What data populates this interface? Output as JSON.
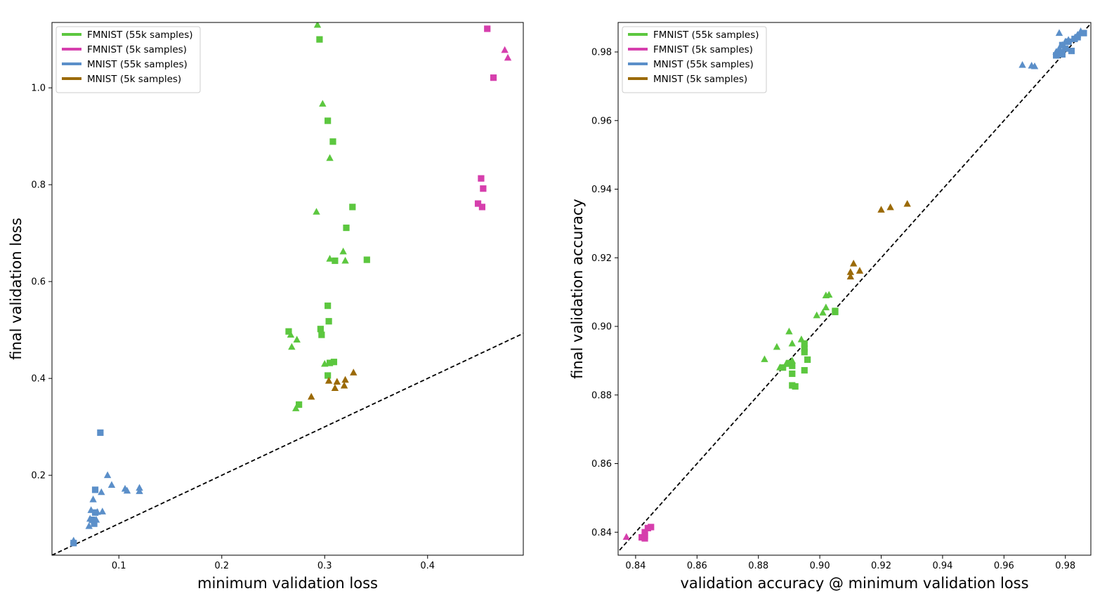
{
  "chart_data": [
    {
      "type": "scatter",
      "xlabel": "minimum validation loss",
      "ylabel": "final validation loss",
      "xlim": [
        0.035,
        0.493
      ],
      "ylim": [
        0.035,
        1.135
      ],
      "xticks": [
        0.1,
        0.2,
        0.3,
        0.4
      ],
      "yticks": [
        0.2,
        0.4,
        0.6,
        0.8,
        1.0
      ],
      "xtick_labels": [
        "0.1",
        "0.2",
        "0.3",
        "0.4"
      ],
      "ytick_labels": [
        "0.2",
        "0.4",
        "0.6",
        "0.8",
        "1.0"
      ],
      "reference_line": "y = x",
      "legend_position": "upper-left",
      "series": [
        {
          "name": "FMNIST (55k samples)",
          "color": "#5cc73f",
          "triangles": [
            [
              0.293,
              1.13
            ],
            [
              0.298,
              0.967
            ],
            [
              0.305,
              0.855
            ],
            [
              0.292,
              0.744
            ],
            [
              0.318,
              0.662
            ],
            [
              0.32,
              0.643
            ],
            [
              0.305,
              0.647
            ],
            [
              0.267,
              0.49
            ],
            [
              0.273,
              0.48
            ],
            [
              0.268,
              0.465
            ],
            [
              0.3,
              0.43
            ],
            [
              0.272,
              0.338
            ],
            [
              0.274,
              0.345
            ]
          ],
          "squares": [
            [
              0.295,
              1.1
            ],
            [
              0.303,
              0.932
            ],
            [
              0.308,
              0.889
            ],
            [
              0.327,
              0.754
            ],
            [
              0.321,
              0.711
            ],
            [
              0.31,
              0.643
            ],
            [
              0.341,
              0.645
            ],
            [
              0.303,
              0.55
            ],
            [
              0.304,
              0.518
            ],
            [
              0.265,
              0.497
            ],
            [
              0.296,
              0.502
            ],
            [
              0.297,
              0.49
            ],
            [
              0.309,
              0.434
            ],
            [
              0.305,
              0.432
            ],
            [
              0.303,
              0.406
            ],
            [
              0.275,
              0.346
            ]
          ]
        },
        {
          "name": "FMNIST (5k samples)",
          "color": "#d63fad",
          "triangles": [
            [
              0.475,
              1.078
            ],
            [
              0.478,
              1.062
            ]
          ],
          "squares": [
            [
              0.458,
              1.122
            ],
            [
              0.464,
              1.021
            ],
            [
              0.452,
              0.813
            ],
            [
              0.454,
              0.792
            ],
            [
              0.449,
              0.761
            ],
            [
              0.453,
              0.754
            ]
          ]
        },
        {
          "name": "MNIST (55k samples)",
          "color": "#5b8fc9",
          "triangles": [
            [
              0.089,
              0.2
            ],
            [
              0.093,
              0.18
            ],
            [
              0.106,
              0.172
            ],
            [
              0.108,
              0.168
            ],
            [
              0.12,
              0.174
            ],
            [
              0.12,
              0.167
            ],
            [
              0.075,
              0.15
            ],
            [
              0.083,
              0.165
            ],
            [
              0.073,
              0.128
            ],
            [
              0.079,
              0.124
            ],
            [
              0.084,
              0.125
            ],
            [
              0.072,
              0.11
            ],
            [
              0.078,
              0.108
            ],
            [
              0.071,
              0.095
            ],
            [
              0.056,
              0.065
            ]
          ],
          "squares": [
            [
              0.082,
              0.288
            ],
            [
              0.077,
              0.17
            ],
            [
              0.077,
              0.123
            ],
            [
              0.074,
              0.108
            ],
            [
              0.076,
              0.1
            ],
            [
              0.056,
              0.06
            ]
          ]
        },
        {
          "name": "MNIST (5k samples)",
          "color": "#9b6a06",
          "triangles": [
            [
              0.328,
              0.412
            ],
            [
              0.32,
              0.397
            ],
            [
              0.304,
              0.395
            ],
            [
              0.312,
              0.393
            ],
            [
              0.319,
              0.385
            ],
            [
              0.31,
              0.38
            ],
            [
              0.287,
              0.362
            ]
          ],
          "squares": []
        }
      ]
    },
    {
      "type": "scatter",
      "xlabel": "validation accuracy @ minimum validation loss",
      "ylabel": "final validation accuracy",
      "xlim": [
        0.8343,
        0.9883
      ],
      "ylim": [
        0.8333,
        0.9886
      ],
      "xticks": [
        0.84,
        0.86,
        0.88,
        0.9,
        0.92,
        0.94,
        0.96,
        0.98
      ],
      "yticks": [
        0.84,
        0.86,
        0.88,
        0.9,
        0.92,
        0.94,
        0.96,
        0.98
      ],
      "xtick_labels": [
        "0.84",
        "0.86",
        "0.88",
        "0.90",
        "0.92",
        "0.94",
        "0.96",
        "0.98"
      ],
      "ytick_labels": [
        "0.84",
        "0.86",
        "0.88",
        "0.90",
        "0.92",
        "0.94",
        "0.96",
        "0.98"
      ],
      "reference_line": "y = x",
      "legend_position": "upper-left",
      "series": [
        {
          "name": "FMNIST (55k samples)",
          "color": "#5cc73f",
          "triangles": [
            [
              0.89,
              0.8985
            ],
            [
              0.894,
              0.8962
            ],
            [
              0.886,
              0.894
            ],
            [
              0.891,
              0.895
            ],
            [
              0.882,
              0.8904
            ],
            [
              0.889,
              0.889
            ],
            [
              0.887,
              0.888
            ],
            [
              0.891,
              0.89
            ],
            [
              0.899,
              0.9032
            ],
            [
              0.901,
              0.904
            ],
            [
              0.902,
              0.9055
            ],
            [
              0.902,
              0.909
            ],
            [
              0.903,
              0.9092
            ]
          ],
          "squares": [
            [
              0.895,
              0.895
            ],
            [
              0.895,
              0.8935
            ],
            [
              0.895,
              0.8925
            ],
            [
              0.896,
              0.8903
            ],
            [
              0.89,
              0.8893
            ],
            [
              0.891,
              0.8885
            ],
            [
              0.888,
              0.888
            ],
            [
              0.891,
              0.8862
            ],
            [
              0.895,
              0.8872
            ],
            [
              0.891,
              0.8828
            ],
            [
              0.892,
              0.8825
            ],
            [
              0.905,
              0.9045
            ],
            [
              0.905,
              0.9042
            ]
          ]
        },
        {
          "name": "FMNIST (5k samples)",
          "color": "#d63fad",
          "triangles": [
            [
              0.837,
              0.8386
            ]
          ],
          "squares": [
            [
              0.845,
              0.8415
            ],
            [
              0.844,
              0.8412
            ],
            [
              0.843,
              0.84
            ],
            [
              0.843,
              0.839
            ],
            [
              0.842,
              0.8385
            ],
            [
              0.843,
              0.8382
            ]
          ]
        },
        {
          "name": "MNIST (55k samples)",
          "color": "#5b8fc9",
          "triangles": [
            [
              0.978,
              0.9855
            ],
            [
              0.966,
              0.9762
            ],
            [
              0.969,
              0.976
            ],
            [
              0.97,
              0.9758
            ],
            [
              0.977,
              0.98
            ],
            [
              0.978,
              0.981
            ],
            [
              0.979,
              0.982
            ],
            [
              0.98,
              0.983
            ],
            [
              0.981,
              0.9835
            ],
            [
              0.983,
              0.984
            ],
            [
              0.984,
              0.985
            ],
            [
              0.985,
              0.986
            ]
          ],
          "squares": [
            [
              0.977,
              0.979
            ],
            [
              0.978,
              0.98
            ],
            [
              0.979,
              0.9793
            ],
            [
              0.98,
              0.981
            ],
            [
              0.982,
              0.9803
            ],
            [
              0.983,
              0.9838
            ],
            [
              0.984,
              0.9843
            ],
            [
              0.986,
              0.9855
            ],
            [
              0.981,
              0.983
            ],
            [
              0.979,
              0.982
            ]
          ]
        },
        {
          "name": "MNIST (5k samples)",
          "color": "#9b6a06",
          "triangles": [
            [
              0.9285,
              0.9357
            ],
            [
              0.923,
              0.9347
            ],
            [
              0.92,
              0.934
            ],
            [
              0.911,
              0.9183
            ],
            [
              0.91,
              0.9158
            ],
            [
              0.913,
              0.9162
            ],
            [
              0.91,
              0.9145
            ]
          ],
          "squares": []
        }
      ]
    }
  ]
}
